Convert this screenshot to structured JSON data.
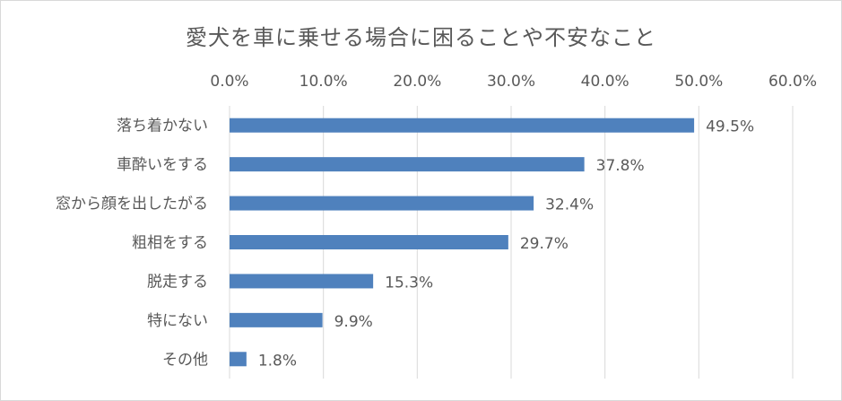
{
  "chart_data": {
    "type": "bar",
    "orientation": "horizontal",
    "title": "愛犬を車に乗せる場合に困ることや不安なこと",
    "categories": [
      "落ち着かない",
      "車酔いをする",
      "窓から顔を出したがる",
      "粗相をする",
      "脱走する",
      "特にない",
      "その他"
    ],
    "values": [
      49.5,
      37.8,
      32.4,
      29.7,
      15.3,
      9.9,
      1.8
    ],
    "value_labels": [
      "49.5%",
      "37.8%",
      "32.4%",
      "29.7%",
      "15.3%",
      "9.9%",
      "1.8%"
    ],
    "xlim": [
      0,
      60
    ],
    "x_ticks": [
      "0.0%",
      "10.0%",
      "20.0%",
      "30.0%",
      "40.0%",
      "50.0%",
      "60.0%"
    ],
    "x_axis_position": "top",
    "grid": true,
    "bar_color": "#4f81bd",
    "grid_color": "#d9d9d9"
  }
}
